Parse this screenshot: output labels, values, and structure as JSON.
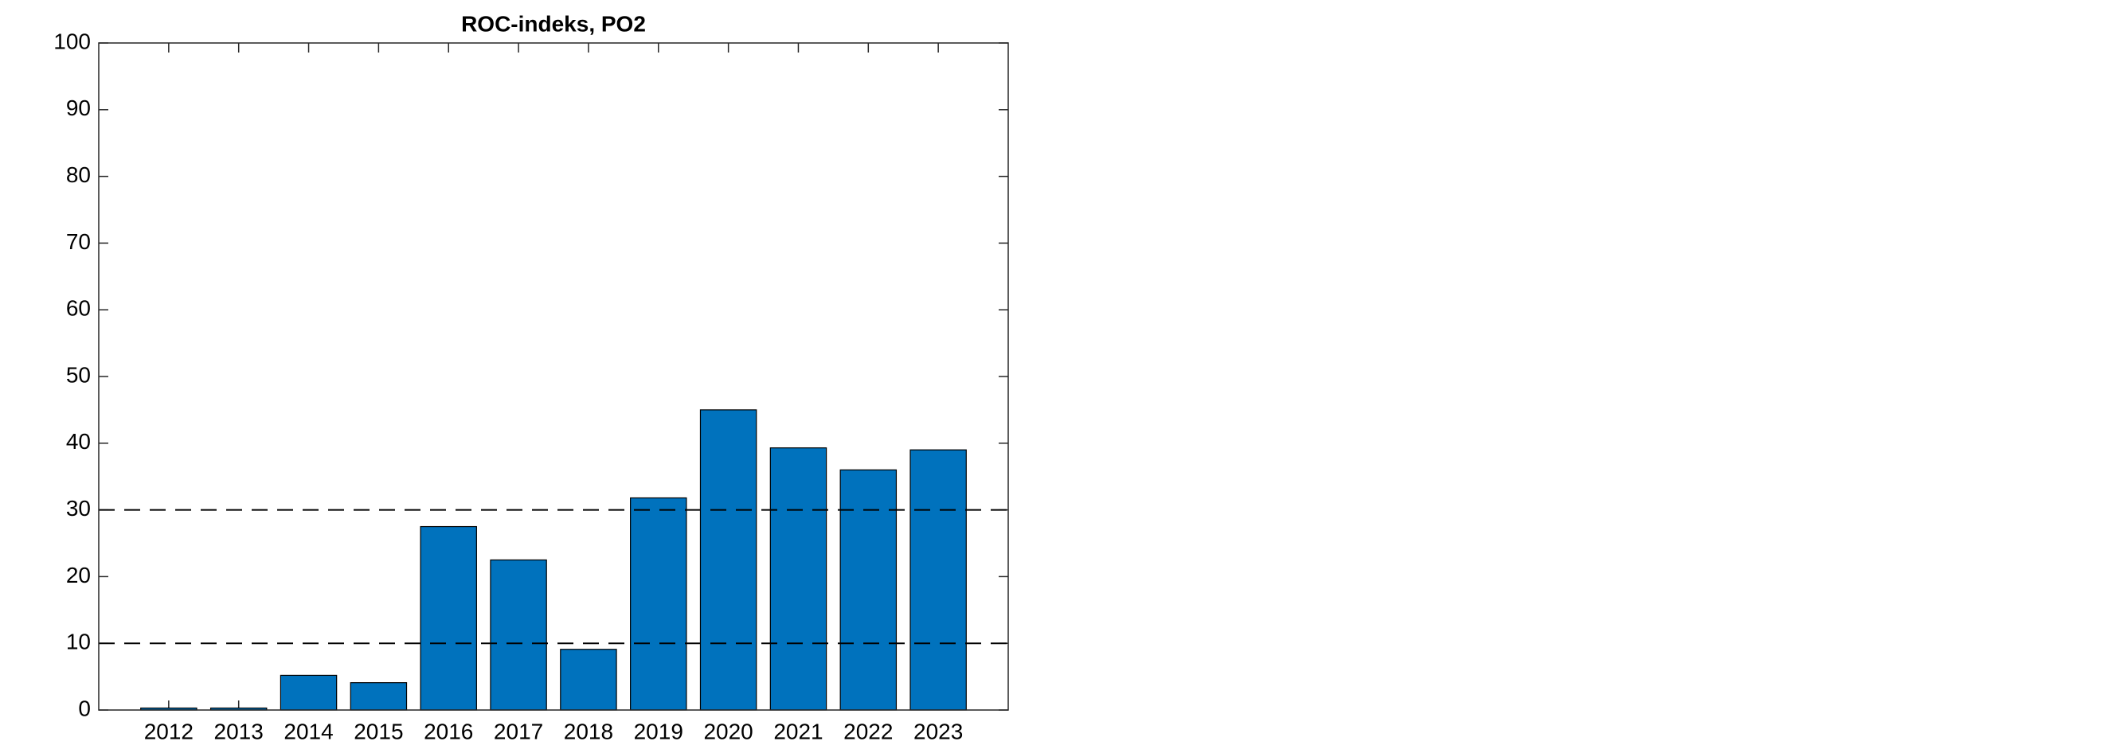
{
  "chart_data": {
    "type": "bar",
    "title": "ROC-indeks, PO2",
    "categories": [
      "2012",
      "2013",
      "2014",
      "2015",
      "2016",
      "2017",
      "2018",
      "2019",
      "2020",
      "2021",
      "2022",
      "2023"
    ],
    "values": [
      0.3,
      0.3,
      5.2,
      4.1,
      27.5,
      22.5,
      9.1,
      31.8,
      45,
      39.3,
      36,
      39
    ],
    "color": "#0072bd",
    "ylim": [
      0,
      100
    ],
    "yticks": [
      0,
      10,
      20,
      30,
      40,
      50,
      60,
      70,
      80,
      90,
      100
    ],
    "reference_lines": [
      10,
      30
    ]
  }
}
